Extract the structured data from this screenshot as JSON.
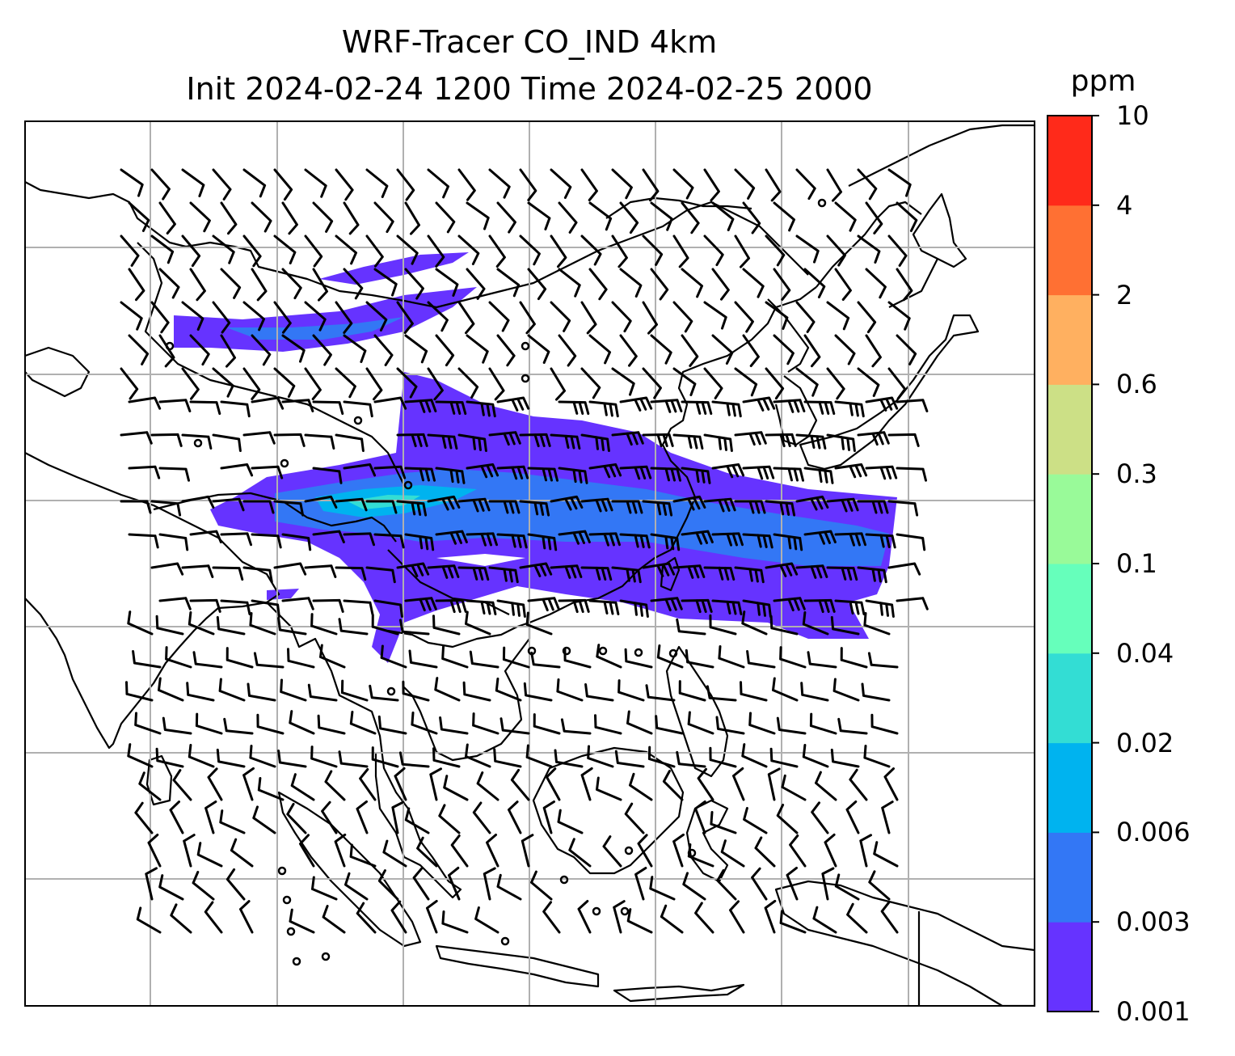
{
  "title": {
    "line1": "WRF-Tracer CO_IND 4km",
    "line2": "Init 2024-02-24 1200 Time 2024-02-25 2000"
  },
  "colorbar": {
    "unit": "ppm",
    "levels": [
      "0.001",
      "0.003",
      "0.006",
      "0.02",
      "0.04",
      "0.1",
      "0.3",
      "0.6",
      "2",
      "4",
      "10"
    ],
    "colors": [
      "#6633ff",
      "#3377f5",
      "#00b3ef",
      "#33ddd4",
      "#66ffbb",
      "#99fa99",
      "#cce086",
      "#ffb060",
      "#ff7033",
      "#ff2a1a"
    ]
  },
  "map": {
    "gridlines": true,
    "plume_colors": {
      "outer": "#6633ff",
      "mid": "#3377f5",
      "core": "#00b3ef",
      "peak": "#33ddd4"
    },
    "gridline_color": "#b0b0b0",
    "coast_color": "#000000"
  }
}
